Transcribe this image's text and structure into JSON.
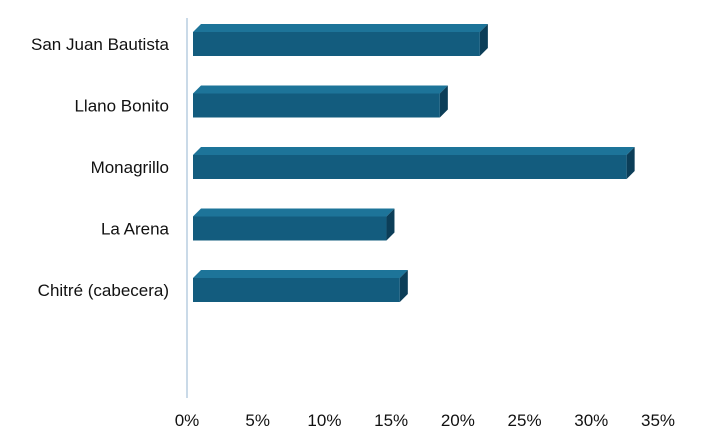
{
  "chart_data": {
    "type": "bar",
    "orientation": "horizontal",
    "style": "3d",
    "categories": [
      "San Juan Bautista",
      "Llano Bonito",
      "Monagrillo",
      "La Arena",
      "Chitré  (cabecera)"
    ],
    "values": [
      21.5,
      18.5,
      32.5,
      14.5,
      15.5
    ],
    "value_unit": "%",
    "xlim": [
      0,
      35
    ],
    "xticks": [
      0,
      5,
      10,
      15,
      20,
      25,
      30,
      35
    ],
    "xtick_labels": [
      "0%",
      "5%",
      "10%",
      "15%",
      "20%",
      "25%",
      "30%",
      "35%"
    ],
    "grid": false,
    "legend": "none",
    "title": "",
    "xlabel": "",
    "ylabel": "",
    "colors": {
      "bar_front": "#135c7e",
      "bar_top": "#1d7499",
      "bar_side": "#0c3e58",
      "axis": "#b9cde0"
    }
  }
}
